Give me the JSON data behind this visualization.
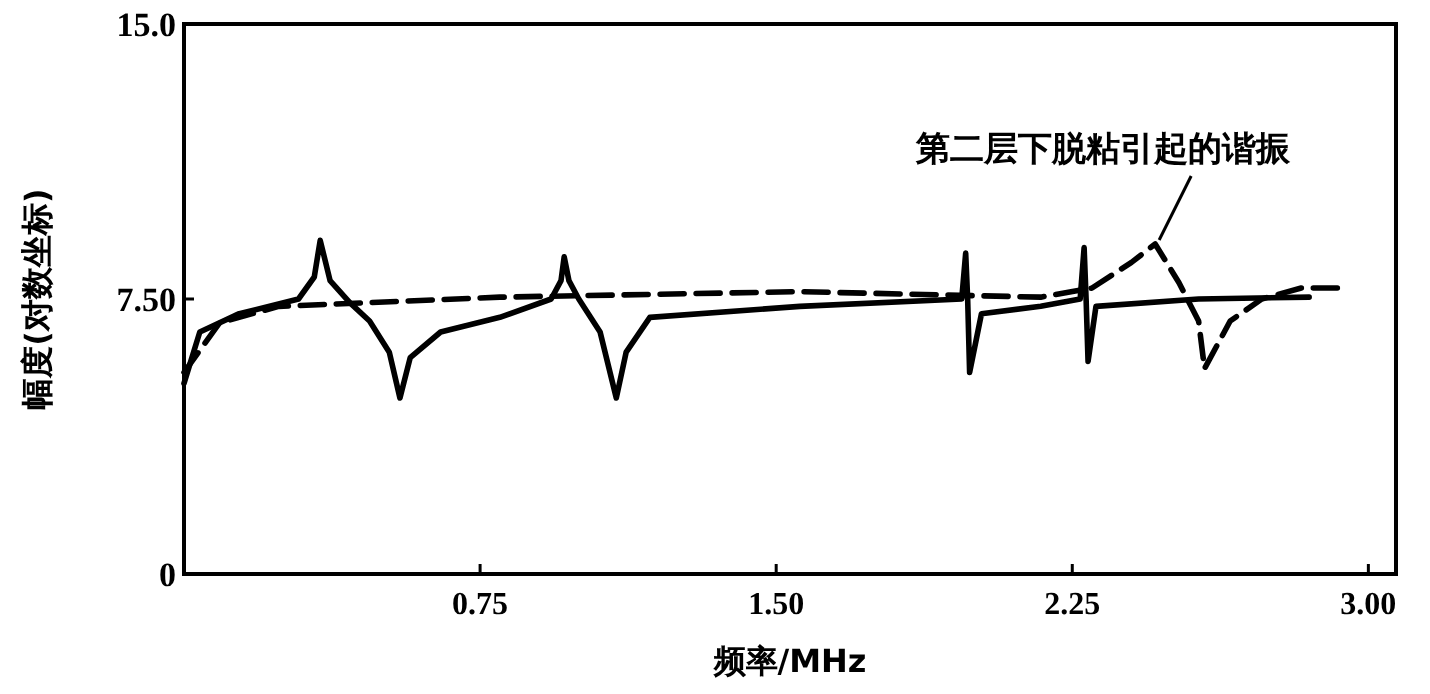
{
  "chart_data": {
    "type": "line",
    "xlabel": "频率/MHz",
    "ylabel": "幅度(对数坐标)",
    "xlim": [
      0,
      3.07
    ],
    "ylim": [
      0,
      15
    ],
    "xticks": [
      {
        "value": 0.75,
        "label": "0.75"
      },
      {
        "value": 1.5,
        "label": "1.50"
      },
      {
        "value": 2.25,
        "label": "2.25"
      },
      {
        "value": 3.0,
        "label": "3.00"
      }
    ],
    "yticks": [
      0,
      {
        "value": 7.5,
        "label": "7.50"
      },
      {
        "value": 15,
        "label": "15.0"
      }
    ],
    "grid": false,
    "marker": "none",
    "annotations": [
      {
        "text": "第二层下脱粘引起的谐振",
        "x": 2.46,
        "y": 9.0
      }
    ],
    "series": [
      {
        "color": "#000000",
        "line_style": "solid",
        "x": [
          0,
          0.04,
          0.14,
          0.29,
          0.33,
          0.345,
          0.37,
          0.42,
          0.47,
          0.52,
          0.547,
          0.573,
          0.65,
          0.8,
          0.93,
          0.955,
          0.963,
          0.975,
          1.0,
          1.054,
          1.095,
          1.12,
          1.18,
          1.56,
          1.97,
          1.98,
          1.985,
          1.99,
          2.02,
          2.17,
          2.27,
          2.28,
          2.285,
          2.29,
          2.31,
          2.57,
          2.85
        ],
        "values": [
          5.2,
          6.6,
          7.1,
          7.5,
          8.1,
          9.1,
          8.0,
          7.4,
          6.9,
          6.05,
          4.8,
          5.9,
          6.6,
          7.0,
          7.5,
          8.0,
          8.65,
          8.0,
          7.5,
          6.6,
          4.8,
          6.05,
          7.0,
          7.3,
          7.5,
          8.75,
          7.5,
          5.5,
          7.1,
          7.3,
          7.5,
          8.9,
          7.5,
          5.8,
          7.3,
          7.5,
          7.55
        ]
      },
      {
        "color": "#000000",
        "line_style": "dashed",
        "x": [
          0,
          0.09,
          0.24,
          0.8,
          1.56,
          2.17,
          2.3,
          2.4,
          2.46,
          2.52,
          2.57,
          2.585,
          2.65,
          2.73,
          2.83,
          2.93
        ],
        "values": [
          5.5,
          6.85,
          7.3,
          7.55,
          7.7,
          7.55,
          7.8,
          8.5,
          9.0,
          7.95,
          6.9,
          5.6,
          6.9,
          7.5,
          7.8,
          7.8
        ]
      }
    ]
  }
}
